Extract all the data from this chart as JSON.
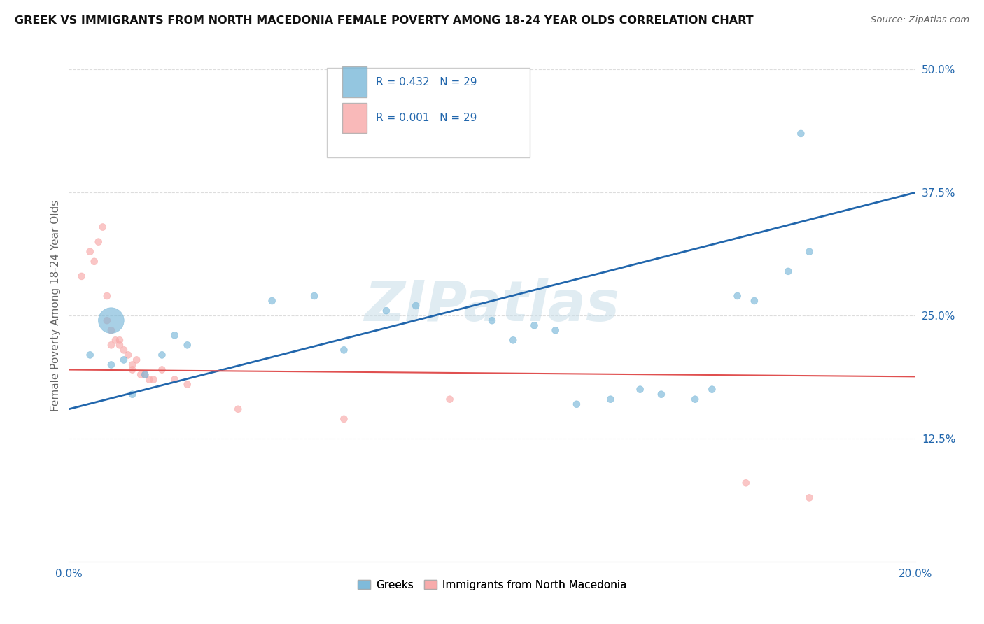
{
  "title": "GREEK VS IMMIGRANTS FROM NORTH MACEDONIA FEMALE POVERTY AMONG 18-24 YEAR OLDS CORRELATION CHART",
  "source": "Source: ZipAtlas.com",
  "ylabel": "Female Poverty Among 18-24 Year Olds",
  "xlim": [
    0.0,
    0.2
  ],
  "ylim": [
    0.0,
    0.52
  ],
  "xtick_positions": [
    0.0,
    0.04,
    0.08,
    0.12,
    0.16,
    0.2
  ],
  "xtick_labels": [
    "0.0%",
    "",
    "",
    "",
    "",
    "20.0%"
  ],
  "ytick_positions": [
    0.0,
    0.125,
    0.25,
    0.375,
    0.5
  ],
  "ytick_labels": [
    "",
    "12.5%",
    "25.0%",
    "37.5%",
    "50.0%"
  ],
  "R_blue": 0.432,
  "N_blue": 29,
  "R_pink": 0.001,
  "N_pink": 29,
  "legend_labels": [
    "Greeks",
    "Immigrants from North Macedonia"
  ],
  "watermark": "ZIPatlas",
  "bg_color": "#ffffff",
  "grid_color": "#dddddd",
  "blue_color": "#7ab8d9",
  "pink_color": "#f8a8a8",
  "blue_line_color": "#2166ac",
  "pink_line_color": "#e05050",
  "blue_scatter": [
    [
      0.005,
      0.21
    ],
    [
      0.01,
      0.2
    ],
    [
      0.013,
      0.205
    ],
    [
      0.015,
      0.17
    ],
    [
      0.018,
      0.19
    ],
    [
      0.022,
      0.21
    ],
    [
      0.025,
      0.23
    ],
    [
      0.028,
      0.22
    ],
    [
      0.01,
      0.245
    ],
    [
      0.048,
      0.265
    ],
    [
      0.058,
      0.27
    ],
    [
      0.065,
      0.215
    ],
    [
      0.075,
      0.255
    ],
    [
      0.082,
      0.26
    ],
    [
      0.1,
      0.245
    ],
    [
      0.105,
      0.225
    ],
    [
      0.11,
      0.24
    ],
    [
      0.115,
      0.235
    ],
    [
      0.12,
      0.16
    ],
    [
      0.128,
      0.165
    ],
    [
      0.135,
      0.175
    ],
    [
      0.14,
      0.17
    ],
    [
      0.148,
      0.165
    ],
    [
      0.152,
      0.175
    ],
    [
      0.158,
      0.27
    ],
    [
      0.162,
      0.265
    ],
    [
      0.17,
      0.295
    ],
    [
      0.175,
      0.315
    ],
    [
      0.173,
      0.435
    ]
  ],
  "blue_sizes": [
    50,
    50,
    50,
    50,
    50,
    50,
    50,
    50,
    700,
    50,
    50,
    50,
    50,
    50,
    50,
    50,
    50,
    50,
    50,
    50,
    50,
    50,
    50,
    50,
    50,
    50,
    50,
    50,
    50
  ],
  "pink_scatter": [
    [
      0.003,
      0.29
    ],
    [
      0.005,
      0.315
    ],
    [
      0.006,
      0.305
    ],
    [
      0.007,
      0.325
    ],
    [
      0.008,
      0.34
    ],
    [
      0.009,
      0.27
    ],
    [
      0.009,
      0.245
    ],
    [
      0.01,
      0.235
    ],
    [
      0.01,
      0.22
    ],
    [
      0.011,
      0.225
    ],
    [
      0.012,
      0.225
    ],
    [
      0.012,
      0.22
    ],
    [
      0.013,
      0.215
    ],
    [
      0.014,
      0.21
    ],
    [
      0.015,
      0.2
    ],
    [
      0.015,
      0.195
    ],
    [
      0.016,
      0.205
    ],
    [
      0.017,
      0.19
    ],
    [
      0.018,
      0.19
    ],
    [
      0.019,
      0.185
    ],
    [
      0.02,
      0.185
    ],
    [
      0.022,
      0.195
    ],
    [
      0.025,
      0.185
    ],
    [
      0.028,
      0.18
    ],
    [
      0.04,
      0.155
    ],
    [
      0.065,
      0.145
    ],
    [
      0.09,
      0.165
    ],
    [
      0.16,
      0.08
    ],
    [
      0.175,
      0.065
    ]
  ],
  "pink_sizes": [
    50,
    50,
    50,
    50,
    50,
    50,
    50,
    50,
    50,
    50,
    50,
    50,
    50,
    50,
    50,
    50,
    50,
    50,
    50,
    50,
    50,
    50,
    50,
    50,
    50,
    50,
    50,
    50,
    50
  ],
  "blue_trend": [
    0.0,
    0.2,
    0.155,
    0.375
  ],
  "pink_trend": [
    0.0,
    0.2,
    0.195,
    0.188
  ]
}
